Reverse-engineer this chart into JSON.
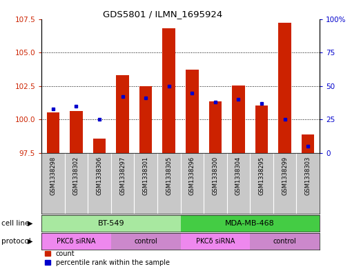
{
  "title": "GDS5801 / ILMN_1695924",
  "samples": [
    "GSM1338298",
    "GSM1338302",
    "GSM1338306",
    "GSM1338297",
    "GSM1338301",
    "GSM1338305",
    "GSM1338296",
    "GSM1338300",
    "GSM1338304",
    "GSM1338295",
    "GSM1338299",
    "GSM1338303"
  ],
  "count_values": [
    100.55,
    100.65,
    98.6,
    103.3,
    102.5,
    106.8,
    103.7,
    101.35,
    102.55,
    101.05,
    107.2,
    98.9
  ],
  "percentile_values": [
    33,
    35,
    25,
    42,
    41,
    50,
    45,
    38,
    40,
    37,
    25,
    5
  ],
  "ylim_left": [
    97.5,
    107.5
  ],
  "ylim_right": [
    0,
    100
  ],
  "yticks_left": [
    97.5,
    100,
    102.5,
    105,
    107.5
  ],
  "yticks_right": [
    0,
    25,
    50,
    75,
    100
  ],
  "cell_line_groups": [
    {
      "label": "BT-549",
      "start": 0,
      "end": 6,
      "color": "#a8e8a0"
    },
    {
      "label": "MDA-MB-468",
      "start": 6,
      "end": 12,
      "color": "#44cc44"
    }
  ],
  "protocol_groups": [
    {
      "label": "PKCδ siRNA",
      "start": 0,
      "end": 3,
      "color": "#ee88ee"
    },
    {
      "label": "control",
      "start": 3,
      "end": 6,
      "color": "#cc88cc"
    },
    {
      "label": "PKCδ siRNA",
      "start": 6,
      "end": 9,
      "color": "#ee88ee"
    },
    {
      "label": "control",
      "start": 9,
      "end": 12,
      "color": "#cc88cc"
    }
  ],
  "bar_color": "#cc2200",
  "dot_color": "#0000cc",
  "background_color": "#ffffff",
  "sample_bg_color": "#c8c8c8",
  "bar_width": 0.55
}
